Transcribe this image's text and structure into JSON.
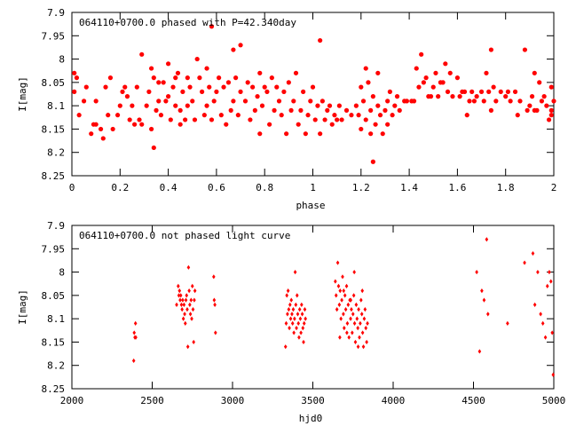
{
  "chart_data": [
    {
      "type": "scatter",
      "title": "064110+0700.0 phased with P=42.340day",
      "xlabel": "phase",
      "ylabel": "I[mag]",
      "xlim": [
        0,
        2
      ],
      "ylim": [
        8.25,
        7.9
      ],
      "y_inverted": true,
      "x_ticks": [
        "0",
        "0.2",
        "0.4",
        "0.6",
        "0.8",
        "1",
        "1.2",
        "1.4",
        "1.6",
        "1.8",
        "2"
      ],
      "y_ticks": [
        "7.9",
        "7.95",
        "8",
        "8.05",
        "8.1",
        "8.15",
        "8.2",
        "8.25"
      ],
      "color": "#ff0000",
      "marker": "filled-circle",
      "points": [
        [
          0.01,
          8.03
        ],
        [
          0.01,
          8.07
        ],
        [
          0.02,
          8.04
        ],
        [
          0.03,
          8.12
        ],
        [
          0.05,
          8.09
        ],
        [
          0.06,
          8.06
        ],
        [
          0.08,
          8.16
        ],
        [
          0.09,
          8.14
        ],
        [
          0.1,
          8.14
        ],
        [
          0.1,
          8.09
        ],
        [
          0.12,
          8.15
        ],
        [
          0.13,
          8.17
        ],
        [
          0.14,
          8.06
        ],
        [
          0.15,
          8.12
        ],
        [
          0.16,
          8.04
        ],
        [
          0.17,
          8.15
        ],
        [
          0.19,
          8.12
        ],
        [
          0.2,
          8.1
        ],
        [
          0.21,
          8.07
        ],
        [
          0.22,
          8.06
        ],
        [
          0.23,
          8.08
        ],
        [
          0.24,
          8.13
        ],
        [
          0.25,
          8.1
        ],
        [
          0.26,
          8.14
        ],
        [
          0.27,
          8.06
        ],
        [
          0.28,
          8.13
        ],
        [
          0.29,
          7.99
        ],
        [
          0.29,
          8.14
        ],
        [
          0.31,
          8.1
        ],
        [
          0.32,
          8.07
        ],
        [
          0.33,
          8.15
        ],
        [
          0.33,
          8.02
        ],
        [
          0.34,
          8.04
        ],
        [
          0.34,
          8.19
        ],
        [
          0.35,
          8.11
        ],
        [
          0.36,
          8.05
        ],
        [
          0.36,
          8.09
        ],
        [
          0.37,
          8.12
        ],
        [
          0.38,
          8.05
        ],
        [
          0.39,
          8.09
        ],
        [
          0.4,
          8.01
        ],
        [
          0.4,
          8.08
        ],
        [
          0.41,
          8.13
        ],
        [
          0.42,
          8.06
        ],
        [
          0.43,
          8.04
        ],
        [
          0.43,
          8.1
        ],
        [
          0.44,
          8.03
        ],
        [
          0.45,
          8.14
        ],
        [
          0.45,
          8.11
        ],
        [
          0.46,
          8.07
        ],
        [
          0.47,
          8.13
        ],
        [
          0.48,
          8.04
        ],
        [
          0.48,
          8.1
        ],
        [
          0.49,
          8.06
        ],
        [
          0.5,
          8.09
        ],
        [
          0.51,
          8.13
        ],
        [
          0.52,
          8.0
        ],
        [
          0.53,
          8.04
        ],
        [
          0.54,
          8.07
        ],
        [
          0.55,
          8.12
        ],
        [
          0.56,
          8.02
        ],
        [
          0.56,
          8.1
        ],
        [
          0.57,
          8.06
        ],
        [
          0.58,
          8.13
        ],
        [
          0.58,
          7.93
        ],
        [
          0.59,
          8.09
        ],
        [
          0.6,
          8.07
        ],
        [
          0.61,
          8.04
        ],
        [
          0.62,
          8.12
        ],
        [
          0.63,
          8.06
        ],
        [
          0.64,
          8.14
        ],
        [
          0.65,
          8.05
        ],
        [
          0.66,
          8.11
        ],
        [
          0.67,
          7.98
        ],
        [
          0.67,
          8.09
        ],
        [
          0.68,
          8.04
        ],
        [
          0.69,
          8.12
        ],
        [
          0.7,
          8.07
        ],
        [
          0.7,
          7.97
        ],
        [
          0.72,
          8.09
        ],
        [
          0.73,
          8.05
        ],
        [
          0.74,
          8.13
        ],
        [
          0.75,
          8.06
        ],
        [
          0.76,
          8.11
        ],
        [
          0.77,
          8.08
        ],
        [
          0.78,
          8.16
        ],
        [
          0.78,
          8.03
        ],
        [
          0.79,
          8.1
        ],
        [
          0.8,
          8.06
        ],
        [
          0.81,
          8.07
        ],
        [
          0.82,
          8.14
        ],
        [
          0.83,
          8.04
        ],
        [
          0.84,
          8.11
        ],
        [
          0.85,
          8.06
        ],
        [
          0.86,
          8.09
        ],
        [
          0.87,
          8.12
        ],
        [
          0.88,
          8.07
        ],
        [
          0.89,
          8.16
        ],
        [
          0.9,
          8.05
        ],
        [
          0.91,
          8.11
        ],
        [
          0.92,
          8.09
        ],
        [
          0.93,
          8.03
        ],
        [
          0.94,
          8.14
        ],
        [
          0.95,
          8.11
        ],
        [
          0.96,
          8.07
        ],
        [
          0.97,
          8.16
        ],
        [
          0.98,
          8.12
        ],
        [
          0.99,
          8.09
        ],
        [
          1.0,
          8.06
        ],
        [
          1.01,
          8.13
        ],
        [
          1.02,
          8.1
        ],
        [
          1.03,
          8.16
        ],
        [
          1.03,
          7.96
        ],
        [
          1.04,
          8.09
        ],
        [
          1.05,
          8.13
        ],
        [
          1.06,
          8.11
        ],
        [
          1.07,
          8.1
        ],
        [
          1.08,
          8.14
        ],
        [
          1.09,
          8.12
        ],
        [
          1.1,
          8.13
        ],
        [
          1.11,
          8.1
        ],
        [
          1.12,
          8.13
        ],
        [
          1.14,
          8.11
        ],
        [
          1.16,
          8.12
        ],
        [
          1.18,
          8.1
        ],
        [
          1.19,
          8.12
        ],
        [
          1.2,
          8.15
        ],
        [
          1.2,
          8.06
        ],
        [
          1.21,
          8.09
        ],
        [
          1.22,
          8.13
        ],
        [
          1.22,
          8.02
        ],
        [
          1.23,
          8.05
        ],
        [
          1.24,
          8.11
        ],
        [
          1.24,
          8.16
        ],
        [
          1.25,
          8.22
        ],
        [
          1.25,
          8.08
        ],
        [
          1.26,
          8.14
        ],
        [
          1.27,
          8.03
        ],
        [
          1.27,
          8.1
        ],
        [
          1.28,
          8.12
        ],
        [
          1.29,
          8.16
        ],
        [
          1.3,
          8.11
        ],
        [
          1.31,
          8.09
        ],
        [
          1.31,
          8.14
        ],
        [
          1.32,
          8.07
        ],
        [
          1.33,
          8.12
        ],
        [
          1.34,
          8.1
        ],
        [
          1.35,
          8.08
        ],
        [
          1.36,
          8.11
        ],
        [
          1.38,
          8.09
        ],
        [
          1.39,
          8.09
        ],
        [
          1.41,
          8.09
        ],
        [
          1.42,
          8.09
        ],
        [
          1.43,
          8.02
        ],
        [
          1.44,
          8.06
        ],
        [
          1.45,
          7.99
        ],
        [
          1.46,
          8.05
        ],
        [
          1.47,
          8.04
        ],
        [
          1.48,
          8.08
        ],
        [
          1.49,
          8.08
        ],
        [
          1.5,
          8.06
        ],
        [
          1.51,
          8.03
        ],
        [
          1.52,
          8.08
        ],
        [
          1.53,
          8.05
        ],
        [
          1.54,
          8.05
        ],
        [
          1.55,
          8.01
        ],
        [
          1.56,
          8.07
        ],
        [
          1.57,
          8.03
        ],
        [
          1.58,
          8.08
        ],
        [
          1.6,
          8.04
        ],
        [
          1.61,
          8.08
        ],
        [
          1.62,
          8.07
        ],
        [
          1.63,
          8.07
        ],
        [
          1.64,
          8.12
        ],
        [
          1.65,
          8.09
        ],
        [
          1.66,
          8.07
        ],
        [
          1.67,
          8.09
        ],
        [
          1.68,
          8.08
        ],
        [
          1.7,
          8.07
        ],
        [
          1.71,
          8.09
        ],
        [
          1.72,
          8.03
        ],
        [
          1.73,
          8.07
        ],
        [
          1.74,
          7.98
        ],
        [
          1.74,
          8.11
        ],
        [
          1.75,
          8.06
        ],
        [
          1.76,
          8.09
        ],
        [
          1.78,
          8.07
        ],
        [
          1.8,
          8.08
        ],
        [
          1.81,
          8.07
        ],
        [
          1.82,
          8.09
        ],
        [
          1.84,
          8.07
        ],
        [
          1.85,
          8.12
        ],
        [
          1.86,
          8.09
        ],
        [
          1.88,
          7.98
        ],
        [
          1.89,
          8.11
        ],
        [
          1.9,
          8.1
        ],
        [
          1.91,
          8.08
        ],
        [
          1.92,
          8.03
        ],
        [
          1.92,
          8.11
        ],
        [
          1.93,
          8.11
        ],
        [
          1.94,
          8.05
        ],
        [
          1.95,
          8.09
        ],
        [
          1.96,
          8.08
        ],
        [
          1.97,
          8.1
        ],
        [
          1.98,
          8.13
        ],
        [
          1.99,
          8.06
        ],
        [
          1.99,
          8.12
        ],
        [
          1.99,
          8.11
        ],
        [
          2.0,
          8.09
        ]
      ]
    },
    {
      "type": "scatter",
      "title": "064110+0700.0 not phased light curve",
      "xlabel": "hjd0",
      "ylabel": "I[mag]",
      "xlim": [
        2000,
        5000
      ],
      "ylim": [
        8.25,
        7.9
      ],
      "y_inverted": true,
      "x_ticks": [
        "2000",
        "2500",
        "3000",
        "3500",
        "4000",
        "4500",
        "5000"
      ],
      "y_ticks": [
        "7.9",
        "7.95",
        "8",
        "8.05",
        "8.1",
        "8.15",
        "8.2",
        "8.25"
      ],
      "color": "#ff0000",
      "marker": "small-diamond",
      "points": [
        [
          2385,
          8.19
        ],
        [
          2388,
          8.13
        ],
        [
          2392,
          8.14
        ],
        [
          2396,
          8.11
        ],
        [
          2398,
          8.14
        ],
        [
          2652,
          8.07
        ],
        [
          2662,
          8.03
        ],
        [
          2666,
          8.05
        ],
        [
          2670,
          8.04
        ],
        [
          2674,
          8.06
        ],
        [
          2678,
          8.05
        ],
        [
          2682,
          8.07
        ],
        [
          2686,
          8.08
        ],
        [
          2690,
          8.06
        ],
        [
          2694,
          8.1
        ],
        [
          2698,
          8.07
        ],
        [
          2702,
          8.09
        ],
        [
          2706,
          8.11
        ],
        [
          2710,
          8.06
        ],
        [
          2714,
          8.05
        ],
        [
          2718,
          8.08
        ],
        [
          2722,
          8.16
        ],
        [
          2726,
          7.99
        ],
        [
          2730,
          8.04
        ],
        [
          2734,
          8.07
        ],
        [
          2738,
          8.09
        ],
        [
          2742,
          8.06
        ],
        [
          2746,
          8.1
        ],
        [
          2750,
          8.03
        ],
        [
          2754,
          8.08
        ],
        [
          2758,
          8.15
        ],
        [
          2762,
          8.06
        ],
        [
          2766,
          8.04
        ],
        [
          2883,
          8.01
        ],
        [
          2886,
          8.06
        ],
        [
          2890,
          8.07
        ],
        [
          2894,
          8.13
        ],
        [
          3330,
          8.16
        ],
        [
          3334,
          8.11
        ],
        [
          3338,
          8.05
        ],
        [
          3342,
          8.09
        ],
        [
          3346,
          8.04
        ],
        [
          3350,
          8.08
        ],
        [
          3354,
          8.12
        ],
        [
          3358,
          8.07
        ],
        [
          3362,
          8.1
        ],
        [
          3366,
          8.06
        ],
        [
          3370,
          8.09
        ],
        [
          3374,
          8.11
        ],
        [
          3378,
          8.08
        ],
        [
          3382,
          8.13
        ],
        [
          3386,
          8.1
        ],
        [
          3390,
          8.0
        ],
        [
          3394,
          8.07
        ],
        [
          3398,
          8.12
        ],
        [
          3402,
          8.05
        ],
        [
          3406,
          8.09
        ],
        [
          3410,
          8.11
        ],
        [
          3414,
          8.14
        ],
        [
          3418,
          8.08
        ],
        [
          3422,
          8.1
        ],
        [
          3426,
          8.13
        ],
        [
          3430,
          8.07
        ],
        [
          3434,
          8.09
        ],
        [
          3438,
          8.12
        ],
        [
          3442,
          8.15
        ],
        [
          3446,
          8.11
        ],
        [
          3450,
          8.08
        ],
        [
          3454,
          8.1
        ],
        [
          3640,
          8.02
        ],
        [
          3645,
          8.05
        ],
        [
          3650,
          8.08
        ],
        [
          3655,
          7.98
        ],
        [
          3660,
          8.03
        ],
        [
          3665,
          8.07
        ],
        [
          3670,
          8.04
        ],
        [
          3675,
          8.1
        ],
        [
          3680,
          8.06
        ],
        [
          3685,
          8.01
        ],
        [
          3690,
          8.09
        ],
        [
          3695,
          8.12
        ],
        [
          3700,
          8.05
        ],
        [
          3705,
          8.08
        ],
        [
          3710,
          8.03
        ],
        [
          3715,
          8.11
        ],
        [
          3720,
          8.07
        ],
        [
          3725,
          8.14
        ],
        [
          3730,
          8.06
        ],
        [
          3735,
          8.1
        ],
        [
          3740,
          8.08
        ],
        [
          3745,
          8.13
        ],
        [
          3750,
          8.09
        ],
        [
          3755,
          8.05
        ],
        [
          3760,
          8.11
        ],
        [
          3765,
          8.15
        ],
        [
          3770,
          8.07
        ],
        [
          3775,
          8.1
        ],
        [
          3780,
          8.12
        ],
        [
          3785,
          8.08
        ],
        [
          3790,
          8.14
        ],
        [
          3795,
          8.11
        ],
        [
          3800,
          8.06
        ],
        [
          3805,
          8.09
        ],
        [
          3810,
          8.13
        ],
        [
          3815,
          8.16
        ],
        [
          3820,
          8.1
        ],
        [
          3825,
          8.08
        ],
        [
          3830,
          8.12
        ],
        [
          3835,
          8.15
        ],
        [
          3840,
          8.11
        ],
        [
          3668,
          8.14
        ],
        [
          3712,
          8.13
        ],
        [
          3758,
          8.0
        ],
        [
          3692,
          8.04
        ],
        [
          3736,
          8.06
        ],
        [
          3782,
          8.16
        ],
        [
          3808,
          8.04
        ],
        [
          4520,
          8.0
        ],
        [
          4538,
          8.17
        ],
        [
          4552,
          8.04
        ],
        [
          4566,
          8.06
        ],
        [
          4582,
          7.93
        ],
        [
          4590,
          8.09
        ],
        [
          4712,
          8.11
        ],
        [
          4818,
          7.98
        ],
        [
          4870,
          7.96
        ],
        [
          4882,
          8.07
        ],
        [
          4900,
          8.0
        ],
        [
          4918,
          8.09
        ],
        [
          4932,
          8.11
        ],
        [
          4948,
          8.14
        ],
        [
          4960,
          8.03
        ],
        [
          4972,
          8.0
        ],
        [
          4982,
          8.02
        ],
        [
          4990,
          8.13
        ],
        [
          4996,
          8.22
        ]
      ]
    }
  ]
}
